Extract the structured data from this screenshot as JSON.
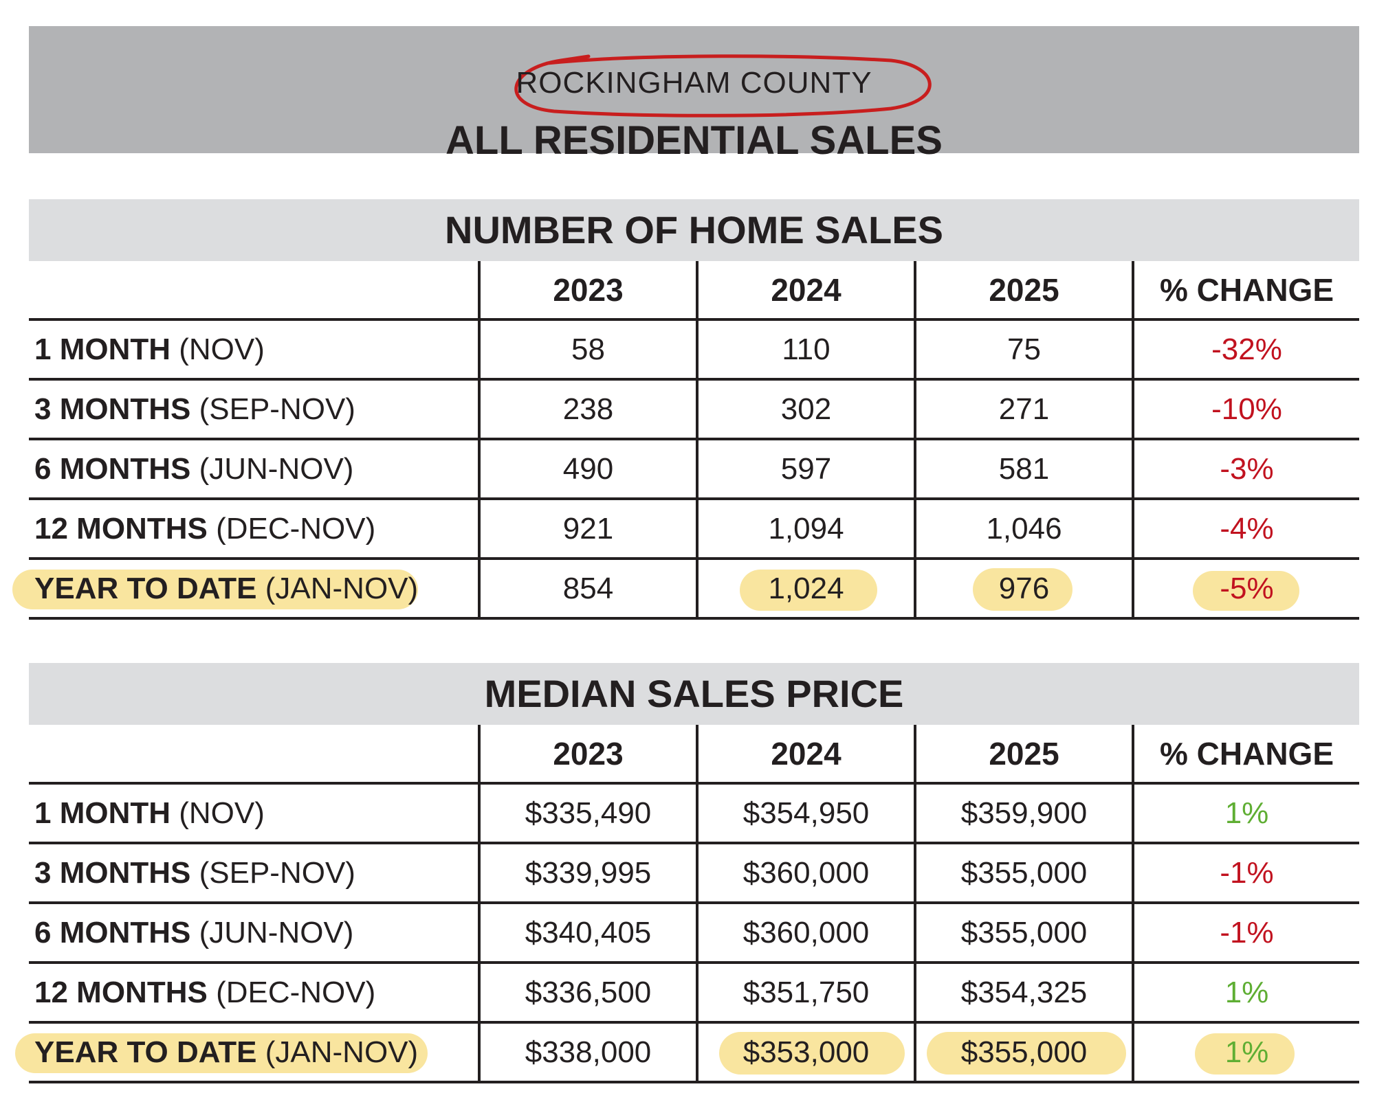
{
  "header": {
    "county": "ROCKINGHAM COUNTY",
    "title": "ALL RESIDENTIAL SALES"
  },
  "colors": {
    "negative": "#c1121f",
    "positive": "#5fae33",
    "highlight": "#f8e08e",
    "circle": "#c81e1e"
  },
  "home_sales": {
    "title": "NUMBER OF HOME SALES",
    "columns": [
      "2023",
      "2024",
      "2025",
      "% CHANGE"
    ],
    "rows": [
      {
        "period": "1 MONTH",
        "range": "(NOV)",
        "v2023": "58",
        "v2024": "110",
        "v2025": "75",
        "change": "-32%"
      },
      {
        "period": "3 MONTHS",
        "range": "(SEP-NOV)",
        "v2023": "238",
        "v2024": "302",
        "v2025": "271",
        "change": "-10%"
      },
      {
        "period": "6 MONTHS",
        "range": "(JUN-NOV)",
        "v2023": "490",
        "v2024": "597",
        "v2025": "581",
        "change": "-3%"
      },
      {
        "period": "12 MONTHS",
        "range": "(DEC-NOV)",
        "v2023": "921",
        "v2024": "1,094",
        "v2025": "1,046",
        "change": "-4%"
      },
      {
        "period": "YEAR TO DATE",
        "range": "(JAN-NOV)",
        "v2023": "854",
        "v2024": "1,024",
        "v2025": "976",
        "change": "-5%"
      }
    ]
  },
  "median_price": {
    "title": "MEDIAN SALES PRICE",
    "columns": [
      "2023",
      "2024",
      "2025",
      "% CHANGE"
    ],
    "rows": [
      {
        "period": "1 MONTH",
        "range": "(NOV)",
        "v2023": "$335,490",
        "v2024": "$354,950",
        "v2025": "$359,900",
        "change": "1%"
      },
      {
        "period": "3 MONTHS",
        "range": "(SEP-NOV)",
        "v2023": "$339,995",
        "v2024": "$360,000",
        "v2025": "$355,000",
        "change": "-1%"
      },
      {
        "period": "6 MONTHS",
        "range": "(JUN-NOV)",
        "v2023": "$340,405",
        "v2024": "$360,000",
        "v2025": "$355,000",
        "change": "-1%"
      },
      {
        "period": "12 MONTHS",
        "range": "(DEC-NOV)",
        "v2023": "$336,500",
        "v2024": "$351,750",
        "v2025": "$354,325",
        "change": "1%"
      },
      {
        "period": "YEAR TO DATE",
        "range": "(JAN-NOV)",
        "v2023": "$338,000",
        "v2024": "$353,000",
        "v2025": "$355,000",
        "change": "1%"
      }
    ]
  }
}
